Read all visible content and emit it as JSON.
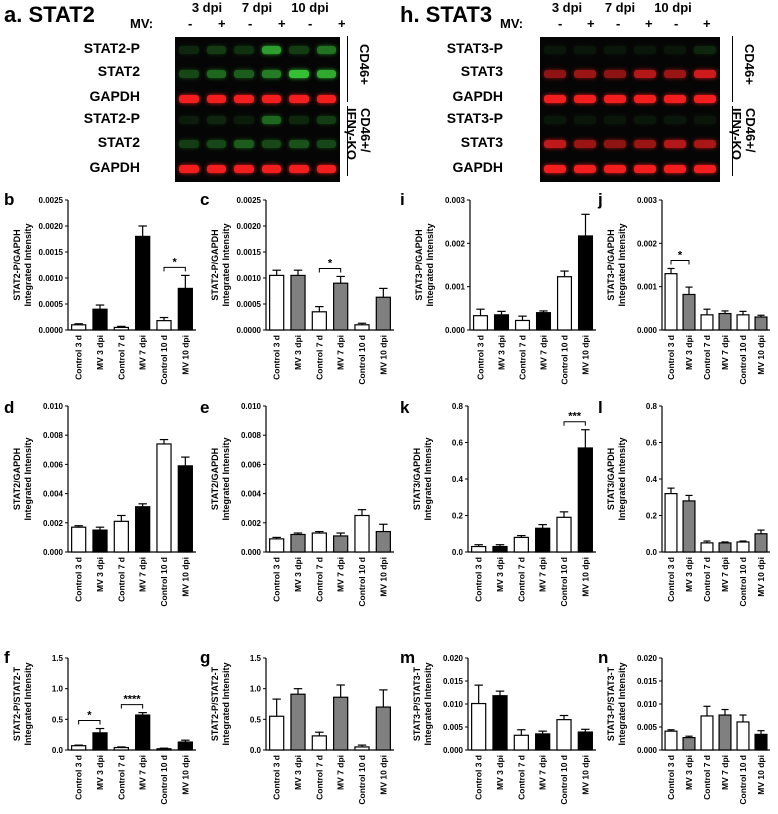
{
  "left_title": "a. STAT2",
  "right_title": "h. STAT3",
  "dpi_labels": [
    "3 dpi",
    "7 dpi",
    "10 dpi"
  ],
  "mv_label": "MV:",
  "mv_signs": [
    "-",
    "+",
    "-",
    "+",
    "-",
    "+"
  ],
  "blots": {
    "stat2": {
      "group1_labels": [
        "STAT2-P",
        "STAT2",
        "GAPDH"
      ],
      "group2_labels": [
        "STAT2-P",
        "STAT2",
        "GAPDH"
      ],
      "group1_side": "CD46+",
      "group2_side": "CD46+/ IFNγ-KO"
    },
    "stat3": {
      "group1_labels": [
        "STAT3-P",
        "STAT3",
        "GAPDH"
      ],
      "group2_labels": [
        "STAT3-P",
        "STAT3",
        "GAPDH"
      ],
      "group1_side": "CD46+",
      "group2_side": "CD46+/ IFNγ-KO"
    }
  },
  "colors": {
    "green_band": "#3ee03e",
    "red_band": "#ff2020",
    "black_bar": "#000000",
    "grey_bar": "#808080",
    "white_bar": "#ffffff"
  },
  "chart_data": [
    {
      "panel": "b",
      "type": "bar",
      "ylabel": [
        "STAT2-P/GAPDH",
        "Integrated Intensity"
      ],
      "ylim": [
        0,
        0.0025
      ],
      "yticks": [
        "0.0000",
        "0.0005",
        "0.0010",
        "0.0015",
        "0.0020",
        "0.0025"
      ],
      "categories": [
        "Control 3 d",
        "MV 3 dpi",
        "Control 7 d",
        "MV 7 dpi",
        "Control 10 d",
        "MV 10 dpi"
      ],
      "values": [
        0.0001,
        0.0004,
        5e-05,
        0.0018,
        0.00018,
        0.0008
      ],
      "errors": [
        2e-05,
        8e-05,
        2e-05,
        0.0002,
        6e-05,
        0.00025
      ],
      "fills": [
        "white",
        "black",
        "white",
        "black",
        "white",
        "black"
      ],
      "sig": [
        {
          "from": 4,
          "to": 5,
          "label": "*"
        }
      ]
    },
    {
      "panel": "c",
      "type": "bar",
      "ylabel": [
        "STAT2-P/GAPDH",
        "Integrated Intensity"
      ],
      "ylim": [
        0,
        0.0025
      ],
      "yticks": [
        "0.0000",
        "0.0005",
        "0.0010",
        "0.0015",
        "0.0020",
        "0.0025"
      ],
      "categories": [
        "Control 3 d",
        "MV 3 dpi",
        "Control 7 d",
        "MV 7 dpi",
        "Control 10 d",
        "MV 10 dpi"
      ],
      "values": [
        0.00105,
        0.00105,
        0.00035,
        0.0009,
        0.0001,
        0.00063
      ],
      "errors": [
        0.0001,
        0.0001,
        0.0001,
        0.00013,
        3e-05,
        0.00017
      ],
      "fills": [
        "white",
        "grey",
        "white",
        "grey",
        "white",
        "grey"
      ],
      "sig": [
        {
          "from": 2,
          "to": 3,
          "label": "*"
        }
      ]
    },
    {
      "panel": "i",
      "type": "bar",
      "ylabel": [
        "STAT3-P/GAPDH",
        "Integrated Intensity"
      ],
      "ylim": [
        0,
        0.003
      ],
      "yticks": [
        "0.000",
        "0.001",
        "0.002",
        "0.003"
      ],
      "categories": [
        "Control 3 d",
        "MV 3 dpi",
        "Control 7 d",
        "MV 7 dpi",
        "Control 10 d",
        "MV 10 dpi"
      ],
      "values": [
        0.00033,
        0.00035,
        0.00022,
        0.0004,
        0.00123,
        0.00217
      ],
      "errors": [
        0.00015,
        8e-05,
        0.0001,
        4e-05,
        0.00013,
        0.0005
      ],
      "fills": [
        "white",
        "black",
        "white",
        "black",
        "white",
        "black"
      ],
      "sig": []
    },
    {
      "panel": "j",
      "type": "bar",
      "ylabel": [
        "STAT3-P/GAPDH",
        "Integrated Intensity"
      ],
      "ylim": [
        0,
        0.003
      ],
      "yticks": [
        "0.000",
        "0.001",
        "0.002",
        "0.003"
      ],
      "categories": [
        "Control 3 d",
        "MV 3 dpi",
        "Control 7 d",
        "MV 7 dpi",
        "Control 10 d",
        "MV 10 dpi"
      ],
      "values": [
        0.0013,
        0.00082,
        0.00035,
        0.00038,
        0.00035,
        0.0003
      ],
      "errors": [
        0.00012,
        0.00017,
        0.00013,
        6e-05,
        8e-05,
        4e-05
      ],
      "fills": [
        "white",
        "grey",
        "white",
        "grey",
        "white",
        "grey"
      ],
      "sig": [
        {
          "from": 0,
          "to": 1,
          "label": "*"
        }
      ]
    },
    {
      "panel": "d",
      "type": "bar",
      "ylabel": [
        "STAT2/GAPDH",
        "Integrated Intensity"
      ],
      "ylim": [
        0,
        0.01
      ],
      "yticks": [
        "0.000",
        "0.002",
        "0.004",
        "0.006",
        "0.008",
        "0.010"
      ],
      "categories": [
        "Control 3 d",
        "MV 3 dpi",
        "Control 7 d",
        "MV 7 dpi",
        "Control 10 d",
        "MV 10 dpi"
      ],
      "values": [
        0.0017,
        0.0015,
        0.0021,
        0.0031,
        0.0074,
        0.0059
      ],
      "errors": [
        0.0001,
        0.0002,
        0.0004,
        0.0002,
        0.0003,
        0.0006
      ],
      "fills": [
        "white",
        "black",
        "white",
        "black",
        "white",
        "black"
      ],
      "sig": []
    },
    {
      "panel": "e",
      "type": "bar",
      "ylabel": [
        "STAT2/GAPDH",
        "Integrated Intensity"
      ],
      "ylim": [
        0,
        0.01
      ],
      "yticks": [
        "0.000",
        "0.002",
        "0.004",
        "0.006",
        "0.008",
        "0.010"
      ],
      "categories": [
        "Control 3 d",
        "MV 3 dpi",
        "Control 7 d",
        "MV 7 dpi",
        "Control 10 d",
        "MV 10 dpi"
      ],
      "values": [
        0.0009,
        0.0012,
        0.0013,
        0.0011,
        0.0025,
        0.0014
      ],
      "errors": [
        0.0001,
        0.0001,
        0.0001,
        0.0002,
        0.0004,
        0.0005
      ],
      "fills": [
        "white",
        "grey",
        "white",
        "grey",
        "white",
        "grey"
      ],
      "sig": []
    },
    {
      "panel": "k",
      "type": "bar",
      "ylabel": [
        "STAT3/GAPDH",
        "Integrated Intensity"
      ],
      "ylim": [
        0,
        0.8
      ],
      "yticks": [
        "0.0",
        "0.2",
        "0.4",
        "0.6",
        "0.8"
      ],
      "categories": [
        "Control 3 d",
        "MV 3 dpi",
        "Control 7 d",
        "MV 7 dpi",
        "Control 10 d",
        "MV 10 dpi"
      ],
      "values": [
        0.03,
        0.03,
        0.08,
        0.13,
        0.19,
        0.57
      ],
      "errors": [
        0.01,
        0.01,
        0.01,
        0.02,
        0.03,
        0.1
      ],
      "fills": [
        "white",
        "black",
        "white",
        "black",
        "white",
        "black"
      ],
      "sig": [
        {
          "from": 4,
          "to": 5,
          "label": "***"
        }
      ]
    },
    {
      "panel": "l",
      "type": "bar",
      "ylabel": [
        "STAT3/GAPDH",
        "Integrated Intensity"
      ],
      "ylim": [
        0,
        0.8
      ],
      "yticks": [
        "0.0",
        "0.2",
        "0.4",
        "0.6",
        "0.8"
      ],
      "categories": [
        "Control 3 d",
        "MV 3 dpi",
        "Control 7 d",
        "MV 7 dpi",
        "Control 10 d",
        "MV 10 dpi"
      ],
      "values": [
        0.32,
        0.28,
        0.05,
        0.05,
        0.055,
        0.1
      ],
      "errors": [
        0.03,
        0.03,
        0.01,
        0.005,
        0.005,
        0.02
      ],
      "fills": [
        "white",
        "grey",
        "white",
        "grey",
        "white",
        "grey"
      ],
      "sig": []
    },
    {
      "panel": "f",
      "type": "bar",
      "ylabel": [
        "STAT2-P/STAT2-T",
        "Integrated Intensity"
      ],
      "ylim": [
        0,
        1.5
      ],
      "yticks": [
        "0.0",
        "0.5",
        "1.0",
        "1.5"
      ],
      "categories": [
        "Control 3 d",
        "MV 3 dpi",
        "Control 7 d",
        "MV 7 dpi",
        "Control 10 d",
        "MV 10 dpi"
      ],
      "values": [
        0.07,
        0.28,
        0.04,
        0.57,
        0.02,
        0.13
      ],
      "errors": [
        0.01,
        0.07,
        0.01,
        0.04,
        0.01,
        0.03
      ],
      "fills": [
        "white",
        "black",
        "white",
        "black",
        "white",
        "black"
      ],
      "sig": [
        {
          "from": 0,
          "to": 1,
          "label": "*"
        },
        {
          "from": 2,
          "to": 3,
          "label": "****"
        }
      ]
    },
    {
      "panel": "g",
      "type": "bar",
      "ylabel": [
        "STAT2-P/STAT2-T",
        "Integrated Intensity"
      ],
      "ylim": [
        0,
        1.5
      ],
      "yticks": [
        "0.0",
        "0.5",
        "1.0",
        "1.5"
      ],
      "categories": [
        "Control 3 d",
        "MV 3 dpi",
        "Control 7 d",
        "MV 7 dpi",
        "Control 10 d",
        "MV 10 dpi"
      ],
      "values": [
        0.55,
        0.91,
        0.23,
        0.86,
        0.05,
        0.7
      ],
      "errors": [
        0.28,
        0.09,
        0.06,
        0.2,
        0.03,
        0.28
      ],
      "fills": [
        "white",
        "grey",
        "white",
        "grey",
        "white",
        "grey"
      ],
      "sig": []
    },
    {
      "panel": "m",
      "type": "bar",
      "ylabel": [
        "STAT3-P/STAT3-T",
        "Integrated Intensity"
      ],
      "ylim": [
        0,
        0.02
      ],
      "yticks": [
        "0.000",
        "0.005",
        "0.010",
        "0.015",
        "0.020"
      ],
      "categories": [
        "Control 3 d",
        "MV 3 dpi",
        "Control 7 d",
        "MV 7 dpi",
        "Control 10 d",
        "MV 10 dpi"
      ],
      "values": [
        0.0101,
        0.0118,
        0.0032,
        0.0035,
        0.0066,
        0.0039
      ],
      "errors": [
        0.004,
        0.001,
        0.0012,
        0.0006,
        0.0009,
        0.0006
      ],
      "fills": [
        "white",
        "black",
        "white",
        "black",
        "white",
        "black"
      ],
      "sig": []
    },
    {
      "panel": "n",
      "type": "bar",
      "ylabel": [
        "STAT3-P/STAT3-T",
        "Integrated Intensity"
      ],
      "ylim": [
        0,
        0.02
      ],
      "yticks": [
        "0.000",
        "0.005",
        "0.010",
        "0.015",
        "0.020"
      ],
      "categories": [
        "Control 3 d",
        "MV 3 dpi",
        "Control 7 d",
        "MV 7 dpi",
        "Control 10 d",
        "MV 10 dpi"
      ],
      "values": [
        0.0041,
        0.0027,
        0.0074,
        0.0076,
        0.0061,
        0.0034
      ],
      "errors": [
        0.0003,
        0.0003,
        0.0021,
        0.0012,
        0.0015,
        0.0008
      ],
      "fills": [
        "white",
        "grey",
        "white",
        "grey",
        "white",
        "black"
      ],
      "sig": []
    }
  ]
}
